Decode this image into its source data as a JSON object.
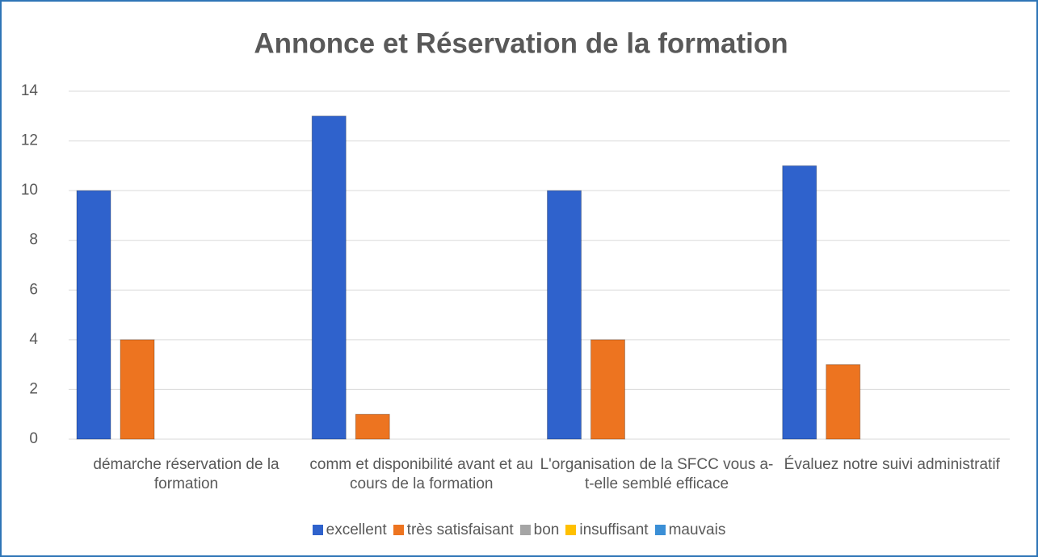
{
  "chart_data": {
    "type": "bar",
    "title": "Annonce et Réservation de la formation",
    "categories": [
      "démarche réservation de la formation",
      "comm et disponibilité avant et au cours de la formation",
      "L'organisation de la SFCC vous a-t-elle semblé efficace",
      "Évaluez notre suivi administratif"
    ],
    "series": [
      {
        "name": "excellent",
        "color": "#2f62cc",
        "values": [
          10,
          13,
          10,
          11
        ]
      },
      {
        "name": "très satisfaisant",
        "color": "#ed7420",
        "values": [
          4,
          1,
          4,
          3
        ]
      },
      {
        "name": "bon",
        "color": "#a5a5a5",
        "values": [
          0,
          0,
          0,
          0
        ]
      },
      {
        "name": "insuffisant",
        "color": "#ffc000",
        "values": [
          0,
          0,
          0,
          0
        ]
      },
      {
        "name": "mauvais",
        "color": "#3b8fd6",
        "values": [
          0,
          0,
          0,
          0
        ]
      }
    ],
    "ylim": [
      0,
      14
    ],
    "yticks": [
      0,
      2,
      4,
      6,
      8,
      10,
      12,
      14
    ],
    "grid": true,
    "legend": "bottom"
  }
}
